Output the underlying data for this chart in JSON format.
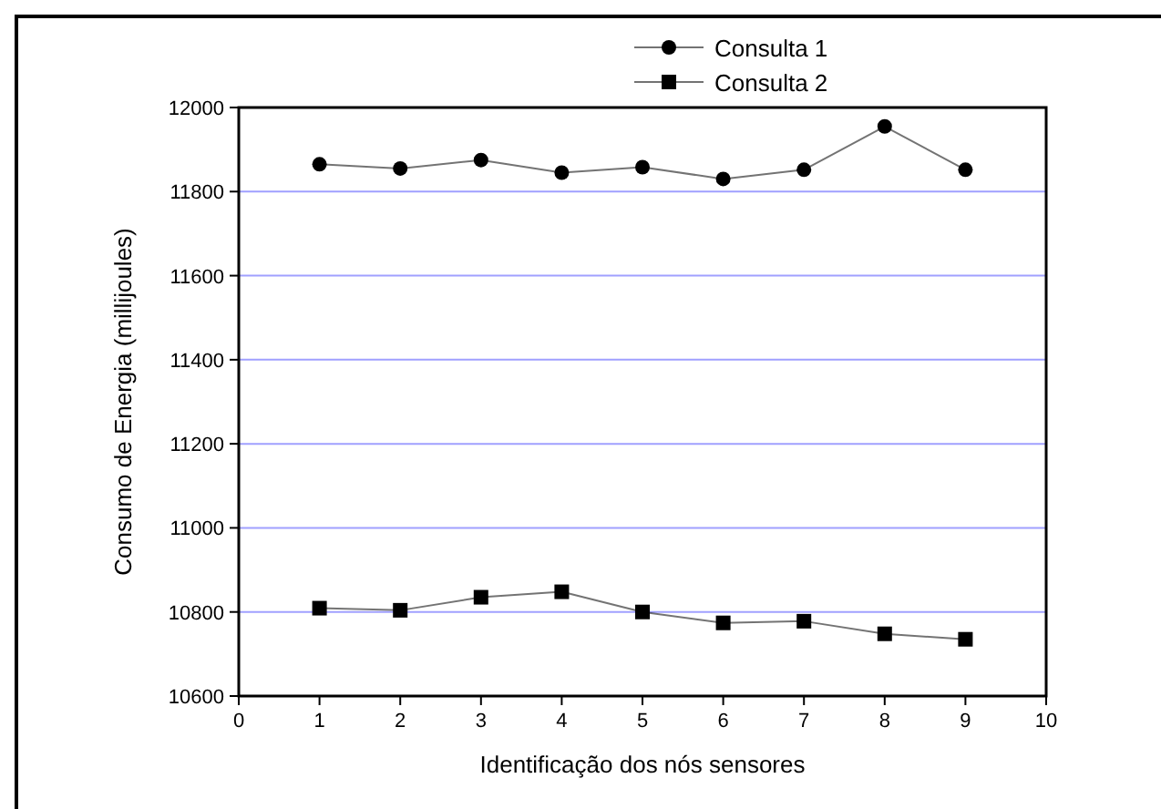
{
  "chart_data": {
    "type": "line",
    "xlabel": "Identificação dos nós sensores",
    "ylabel": "Consumo de Energia (millijoules)",
    "x": [
      1,
      2,
      3,
      4,
      5,
      6,
      7,
      8,
      9
    ],
    "series": [
      {
        "name": "Consulta 1",
        "color": "#000000",
        "marker": "circle",
        "values": [
          11865,
          11855,
          11875,
          11845,
          11858,
          11830,
          11852,
          11955,
          11852
        ]
      },
      {
        "name": "Consulta 2",
        "color": "#000000",
        "marker": "square",
        "values": [
          10809,
          10804,
          10835,
          10848,
          10800,
          10774,
          10778,
          10748,
          10735
        ]
      }
    ],
    "xlim": [
      0,
      10
    ],
    "xticks": [
      0,
      1,
      2,
      3,
      4,
      5,
      6,
      7,
      8,
      9,
      10
    ],
    "ylim": [
      10600,
      12000
    ],
    "yticks": [
      10600,
      10800,
      11000,
      11200,
      11400,
      11600,
      11800,
      12000
    ],
    "grid": "y",
    "legend": "top",
    "line_style": "solid"
  }
}
